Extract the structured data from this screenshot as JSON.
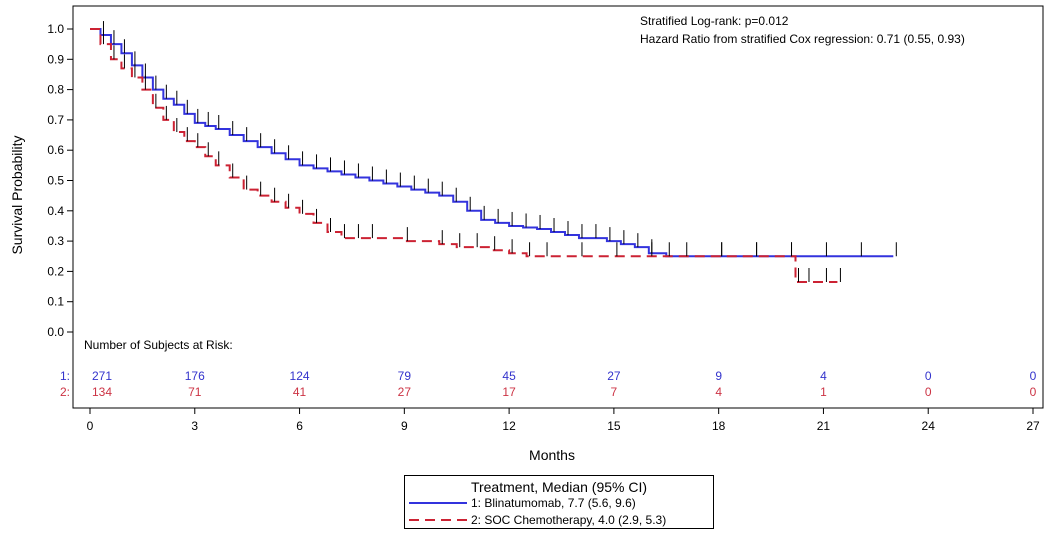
{
  "chart_data": {
    "type": "line",
    "title": "",
    "xlabel": "Months",
    "ylabel": "Survival Probability",
    "xlim": [
      0,
      27
    ],
    "ylim": [
      0,
      1.0
    ],
    "x_ticks": [
      "0",
      "3",
      "6",
      "9",
      "12",
      "15",
      "18",
      "21",
      "24",
      "27"
    ],
    "y_ticks": [
      "0.0",
      "0.1",
      "0.2",
      "0.3",
      "0.4",
      "0.5",
      "0.6",
      "0.7",
      "0.8",
      "0.9",
      "1.0"
    ],
    "grid": false,
    "annotations": [
      "Stratified Log-rank: p=0.012",
      "Hazard Ratio from stratified Cox regression: 0.71 (0.55, 0.93)"
    ],
    "risk_table": {
      "title": "Number of Subjects at Risk:",
      "times": [
        0,
        3,
        6,
        9,
        12,
        15,
        18,
        21,
        24,
        27
      ],
      "rows": [
        {
          "label": "1:",
          "color": "#3333cc",
          "counts": [
            "271",
            "176",
            "124",
            "79",
            "45",
            "27",
            "9",
            "4",
            "0",
            "0"
          ]
        },
        {
          "label": "2:",
          "color": "#cc3344",
          "counts": [
            "134",
            "71",
            "41",
            "27",
            "17",
            "7",
            "4",
            "1",
            "0",
            "0"
          ]
        }
      ]
    },
    "legend": {
      "title": "Treatment, Median (95% CI)",
      "placement": "bottom-center",
      "entries": [
        "1: Blinatumomab, 7.7 (5.6, 9.6)",
        "2: SOC Chemotherapy, 4.0 (2.9, 5.3)"
      ]
    },
    "series": [
      {
        "color": "#3333dd",
        "style": "solid",
        "x": [
          0,
          0.3,
          0.6,
          0.9,
          1.2,
          1.5,
          1.8,
          2.1,
          2.4,
          2.7,
          3.0,
          3.3,
          3.6,
          4.0,
          4.4,
          4.8,
          5.2,
          5.6,
          6.0,
          6.4,
          6.8,
          7.2,
          7.6,
          8.0,
          8.4,
          8.8,
          9.2,
          9.6,
          10.0,
          10.4,
          10.8,
          11.2,
          11.6,
          12.0,
          12.4,
          12.8,
          13.2,
          13.6,
          14.0,
          14.4,
          14.8,
          15.2,
          15.6,
          16.0,
          16.5,
          17.0,
          18.0,
          19.0,
          20.0,
          21.0,
          22.0,
          23.0
        ],
        "y": [
          1.0,
          0.98,
          0.95,
          0.92,
          0.88,
          0.84,
          0.8,
          0.77,
          0.75,
          0.72,
          0.69,
          0.68,
          0.67,
          0.65,
          0.63,
          0.61,
          0.59,
          0.57,
          0.55,
          0.54,
          0.53,
          0.52,
          0.51,
          0.5,
          0.49,
          0.48,
          0.47,
          0.46,
          0.45,
          0.43,
          0.4,
          0.37,
          0.36,
          0.35,
          0.345,
          0.34,
          0.33,
          0.32,
          0.31,
          0.31,
          0.3,
          0.29,
          0.28,
          0.26,
          0.25,
          0.25,
          0.25,
          0.25,
          0.25,
          0.25,
          0.25,
          0.25
        ]
      },
      {
        "color": "#cc2233",
        "style": "dashed",
        "x": [
          0,
          0.3,
          0.6,
          0.9,
          1.2,
          1.5,
          1.8,
          2.1,
          2.4,
          2.7,
          3.0,
          3.3,
          3.6,
          4.0,
          4.4,
          4.8,
          5.2,
          5.6,
          6.0,
          6.4,
          6.8,
          7.2,
          7.6,
          8.0,
          9.0,
          10.0,
          10.5,
          11.0,
          11.5,
          12.0,
          12.5,
          13.0,
          14.0,
          15.0,
          16.0,
          18.0,
          19.0,
          20.0,
          20.2,
          20.5,
          21.0,
          21.4
        ],
        "y": [
          1.0,
          0.95,
          0.9,
          0.87,
          0.84,
          0.8,
          0.74,
          0.7,
          0.66,
          0.63,
          0.61,
          0.58,
          0.55,
          0.51,
          0.47,
          0.45,
          0.43,
          0.41,
          0.39,
          0.36,
          0.33,
          0.31,
          0.31,
          0.31,
          0.3,
          0.29,
          0.28,
          0.28,
          0.27,
          0.26,
          0.25,
          0.25,
          0.25,
          0.25,
          0.25,
          0.25,
          0.25,
          0.25,
          0.165,
          0.165,
          0.165,
          0.165
        ]
      }
    ]
  }
}
